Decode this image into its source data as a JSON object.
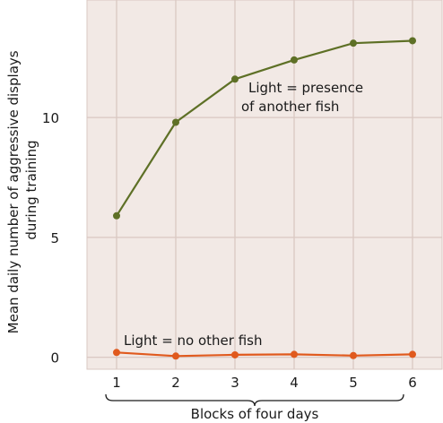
{
  "chart_data": {
    "type": "line",
    "x": [
      1,
      2,
      3,
      4,
      5,
      6
    ],
    "xlabel": "Blocks of four days",
    "ylabel_lines": [
      "Mean daily number of aggressive displays",
      "during training"
    ],
    "xlim": [
      0.5,
      6.5
    ],
    "ylim": [
      -0.5,
      14.9
    ],
    "yticks": [
      0,
      5,
      10
    ],
    "grid": true,
    "background": "#f2e9e5",
    "grid_color": "#d9c8c2",
    "series": [
      {
        "values": [
          5.9,
          9.8,
          11.6,
          12.4,
          13.1,
          13.2
        ],
        "color": "#5e7026",
        "label_lines": [
          "Light = presence",
          "of another fish"
        ]
      },
      {
        "values": [
          0.2,
          0.05,
          0.1,
          0.12,
          0.07,
          0.12
        ],
        "color": "#e05a1e",
        "label_lines": [
          "Light = no other fish"
        ]
      }
    ]
  }
}
